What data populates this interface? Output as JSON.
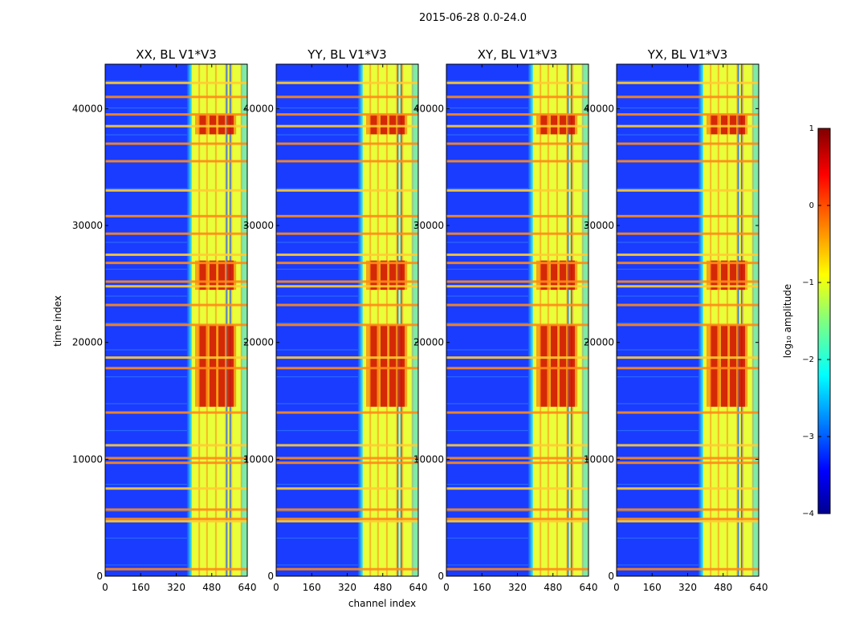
{
  "chart_data": {
    "type": "heatmap",
    "suptitle": "2015-06-28 0.0-24.0",
    "xlabel": "channel index",
    "ylabel": "time index",
    "xlim": [
      0,
      640
    ],
    "ylim": [
      0,
      43800
    ],
    "x_ticks": [
      "0",
      "160",
      "320",
      "480",
      "640"
    ],
    "y_ticks": [
      "0",
      "10000",
      "20000",
      "30000",
      "40000"
    ],
    "panels": [
      {
        "title": "XX, BL V1*V3"
      },
      {
        "title": "YY, BL V1*V3"
      },
      {
        "title": "XY, BL V1*V3"
      },
      {
        "title": "YX, BL V1*V3"
      }
    ],
    "colorbar": {
      "label": "log₁₀ amplitude",
      "range": [
        -4,
        1
      ],
      "colormap": "jet",
      "ticks": [
        "1",
        "0",
        "−1",
        "−2",
        "−3",
        "−4"
      ]
    },
    "band_channels": [
      390,
      640
    ],
    "bright_time_ranges": [
      [
        14500,
        21500
      ],
      [
        24500,
        27000
      ],
      [
        37800,
        39500
      ]
    ],
    "horizontal_lines_time_index": [
      600,
      4700,
      4900,
      5700,
      7500,
      9700,
      10100,
      11200,
      14000,
      17800,
      18700,
      21500,
      23200,
      24800,
      25200,
      26800,
      27500,
      29300,
      30800,
      33000,
      35500,
      37000,
      38500,
      39500,
      41000,
      42200
    ]
  }
}
